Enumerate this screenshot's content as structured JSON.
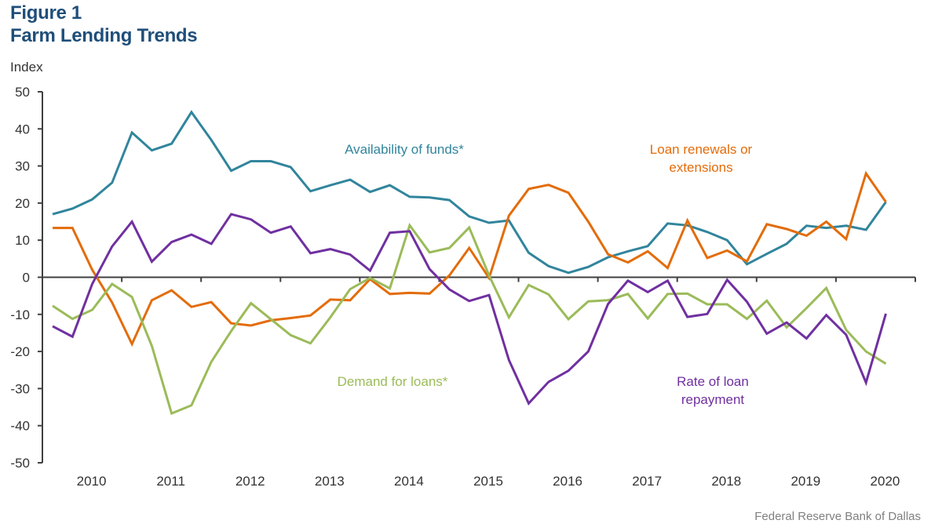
{
  "header": {
    "figure": "Figure 1",
    "title": "Farm Lending Trends",
    "ylabel": "Index"
  },
  "source": "Federal Reserve Bank of Dallas",
  "chart_data": {
    "type": "line",
    "title": "Farm Lending Trends",
    "xlabel": "",
    "ylabel": "Index",
    "ylim": [
      -50,
      50
    ],
    "yticks": [
      50,
      40,
      30,
      20,
      10,
      0,
      -10,
      -20,
      -30,
      -40,
      -50
    ],
    "grid": false,
    "x_categories": [
      "2010",
      "2011",
      "2012",
      "2013",
      "2014",
      "2015",
      "2016",
      "2017",
      "2018",
      "2019",
      "2020"
    ],
    "x_frequency": "quarterly",
    "x_start": "2010Q1",
    "series": [
      {
        "name": "Availability of funds*",
        "color": "#31859c",
        "label_lines": [
          "Availability  of funds*"
        ],
        "values": [
          17,
          18.5,
          21,
          25.5,
          39,
          34.2,
          36,
          44.5,
          37,
          28.7,
          31.3,
          31.3,
          29.7,
          23.2,
          24.8,
          26.3,
          23,
          24.8,
          21.7,
          21.5,
          20.8,
          16.4,
          14.7,
          15.3,
          6.6,
          3,
          1.2,
          2.8,
          5.4,
          7,
          8.4,
          14.5,
          14,
          12.2,
          10,
          3.5,
          6.3,
          9,
          13.9,
          13.3,
          13.9,
          12.8,
          20.3
        ]
      },
      {
        "name": "Loan renewals or extensions",
        "color": "#e36c0a",
        "label_lines": [
          "Loan renewals or",
          "extensions"
        ],
        "values": [
          13.3,
          13.3,
          2,
          -6.8,
          -18,
          -6.2,
          -3.5,
          -8,
          -6.7,
          -12.4,
          -13,
          -11.6,
          -11,
          -10.3,
          -6,
          -6.2,
          -0.5,
          -4.5,
          -4.2,
          -4.4,
          0.5,
          7.9,
          -0.2,
          16.6,
          23.8,
          24.9,
          22.8,
          15,
          6.2,
          4,
          7,
          2.5,
          15.3,
          5.2,
          7.2,
          4.3,
          14.3,
          13,
          11.2,
          15,
          10.3,
          28,
          20.3
        ]
      },
      {
        "name": "Demand for loans*",
        "color": "#9bbb59",
        "label_lines": [
          "Demand  for loans*"
        ],
        "values": [
          -7.7,
          -11.2,
          -8.8,
          -1.8,
          -5.3,
          -18.5,
          -36.7,
          -34.5,
          -22.8,
          -14.5,
          -7,
          -11.3,
          -15.6,
          -17.8,
          -10.8,
          -3.2,
          -0.2,
          -3,
          14,
          6.7,
          7.9,
          13.4,
          0.5,
          -10.8,
          -2.1,
          -4.6,
          -11.3,
          -6.5,
          -6.2,
          -4.5,
          -11.1,
          -4.5,
          -4.4,
          -7.3,
          -7.3,
          -11.2,
          -6.3,
          -13.5,
          -8.3,
          -2.9,
          -14.2,
          -20,
          -23.3
        ]
      },
      {
        "name": "Rate of loan repayment",
        "color": "#7030a0",
        "label_lines": [
          "Rate of loan",
          "repayment"
        ],
        "values": [
          -13.2,
          -16,
          -1.8,
          8.3,
          15,
          4.2,
          9.5,
          11.5,
          9,
          17,
          15.6,
          12,
          13.7,
          6.5,
          7.6,
          6.1,
          1.8,
          12,
          12.4,
          2.2,
          -3.3,
          -6.4,
          -4.8,
          -22.3,
          -34,
          -28.2,
          -25.2,
          -20,
          -7.2,
          -0.9,
          -4,
          -0.9,
          -10.7,
          -9.9,
          -0.7,
          -6.6,
          -15.2,
          -12.2,
          -16.5,
          -10.2,
          -15.5,
          -28.4,
          -9.8
        ]
      }
    ]
  }
}
